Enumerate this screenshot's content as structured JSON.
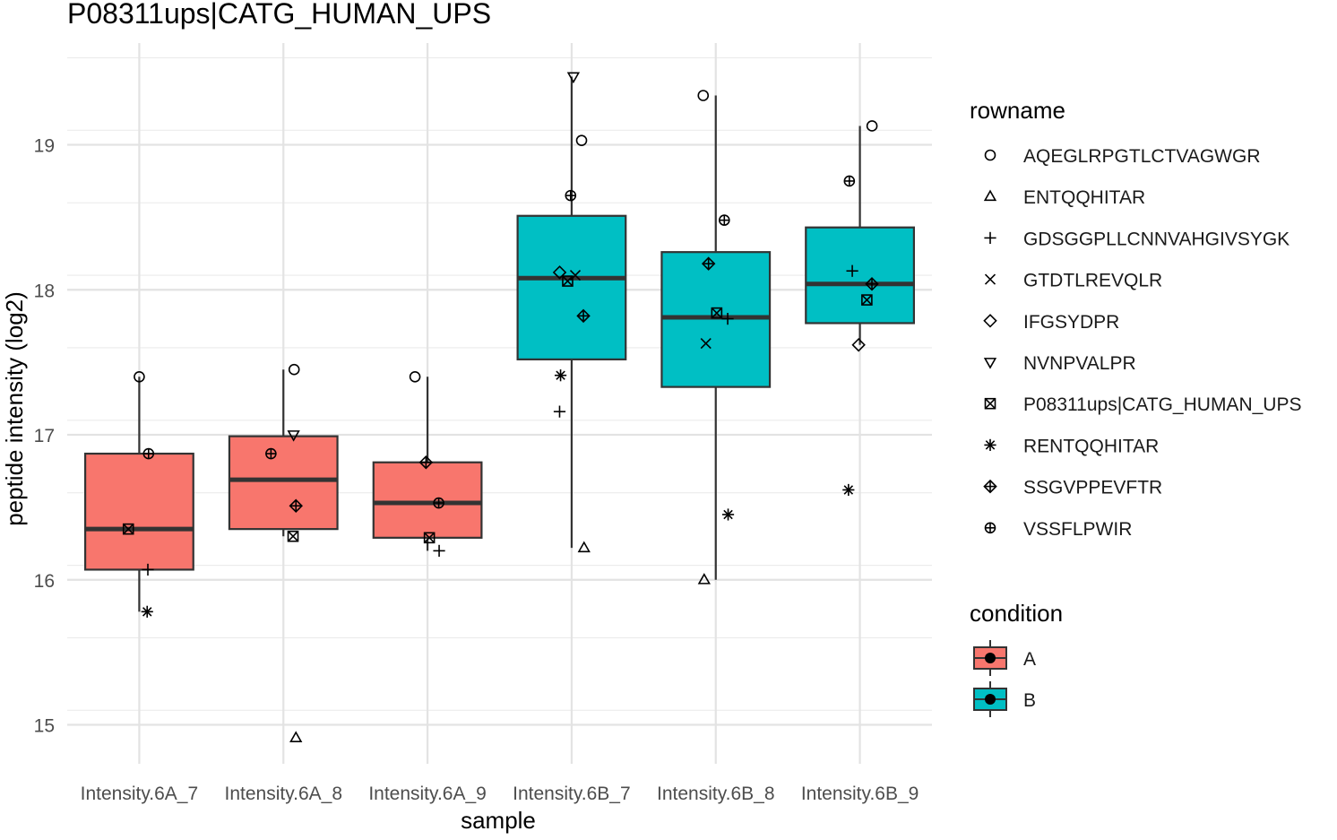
{
  "chart_data": {
    "type": "boxplot",
    "title": "P08311ups|CATG_HUMAN_UPS",
    "xlabel": "sample",
    "ylabel": "peptide intensity (log2)",
    "ylim": [
      14.6,
      19.7
    ],
    "yticks": [
      15,
      16,
      17,
      18,
      19
    ],
    "grid": true,
    "categories": [
      "Intensity.6A_7",
      "Intensity.6A_8",
      "Intensity.6A_9",
      "Intensity.6B_7",
      "Intensity.6B_8",
      "Intensity.6B_9"
    ],
    "conditions": [
      "A",
      "A",
      "A",
      "B",
      "B",
      "B"
    ],
    "boxes": [
      {
        "q1": 16.07,
        "median": 16.35,
        "q3": 16.87,
        "whisker_low": 15.78,
        "whisker_high": 17.4
      },
      {
        "q1": 16.35,
        "median": 16.69,
        "q3": 16.99,
        "whisker_low": 16.3,
        "whisker_high": 17.45
      },
      {
        "q1": 16.29,
        "median": 16.53,
        "q3": 16.81,
        "whisker_low": 16.2,
        "whisker_high": 17.4
      },
      {
        "q1": 17.52,
        "median": 18.08,
        "q3": 18.51,
        "whisker_low": 16.22,
        "whisker_high": 19.47
      },
      {
        "q1": 17.33,
        "median": 17.81,
        "q3": 18.26,
        "whisker_low": 16.0,
        "whisker_high": 19.34
      },
      {
        "q1": 17.77,
        "median": 18.04,
        "q3": 18.43,
        "whisker_low": 17.62,
        "whisker_high": 19.13
      }
    ],
    "points": [
      {
        "sample": 0,
        "peptide": 0,
        "value": 17.4
      },
      {
        "sample": 0,
        "peptide": 9,
        "value": 16.87
      },
      {
        "sample": 0,
        "peptide": 6,
        "value": 16.35
      },
      {
        "sample": 0,
        "peptide": 2,
        "value": 16.07
      },
      {
        "sample": 0,
        "peptide": 7,
        "value": 15.78
      },
      {
        "sample": 1,
        "peptide": 0,
        "value": 17.45
      },
      {
        "sample": 1,
        "peptide": 5,
        "value": 17.0
      },
      {
        "sample": 1,
        "peptide": 9,
        "value": 16.87
      },
      {
        "sample": 1,
        "peptide": 8,
        "value": 16.51
      },
      {
        "sample": 1,
        "peptide": 6,
        "value": 16.3
      },
      {
        "sample": 1,
        "peptide": 1,
        "value": 14.91
      },
      {
        "sample": 2,
        "peptide": 0,
        "value": 17.4
      },
      {
        "sample": 2,
        "peptide": 8,
        "value": 16.81
      },
      {
        "sample": 2,
        "peptide": 9,
        "value": 16.53
      },
      {
        "sample": 2,
        "peptide": 6,
        "value": 16.29
      },
      {
        "sample": 2,
        "peptide": 2,
        "value": 16.2
      },
      {
        "sample": 3,
        "peptide": 5,
        "value": 19.47
      },
      {
        "sample": 3,
        "peptide": 0,
        "value": 19.03
      },
      {
        "sample": 3,
        "peptide": 9,
        "value": 18.65
      },
      {
        "sample": 3,
        "peptide": 3,
        "value": 18.1
      },
      {
        "sample": 3,
        "peptide": 4,
        "value": 18.12
      },
      {
        "sample": 3,
        "peptide": 6,
        "value": 18.06
      },
      {
        "sample": 3,
        "peptide": 8,
        "value": 17.82
      },
      {
        "sample": 3,
        "peptide": 7,
        "value": 17.41
      },
      {
        "sample": 3,
        "peptide": 2,
        "value": 17.16
      },
      {
        "sample": 3,
        "peptide": 1,
        "value": 16.22
      },
      {
        "sample": 4,
        "peptide": 0,
        "value": 19.34
      },
      {
        "sample": 4,
        "peptide": 9,
        "value": 18.48
      },
      {
        "sample": 4,
        "peptide": 8,
        "value": 18.18
      },
      {
        "sample": 4,
        "peptide": 6,
        "value": 17.84
      },
      {
        "sample": 4,
        "peptide": 2,
        "value": 17.8
      },
      {
        "sample": 4,
        "peptide": 3,
        "value": 17.63
      },
      {
        "sample": 4,
        "peptide": 7,
        "value": 16.45
      },
      {
        "sample": 4,
        "peptide": 1,
        "value": 16.0
      },
      {
        "sample": 5,
        "peptide": 0,
        "value": 19.13
      },
      {
        "sample": 5,
        "peptide": 9,
        "value": 18.75
      },
      {
        "sample": 5,
        "peptide": 2,
        "value": 18.13
      },
      {
        "sample": 5,
        "peptide": 8,
        "value": 18.04
      },
      {
        "sample": 5,
        "peptide": 6,
        "value": 17.93
      },
      {
        "sample": 5,
        "peptide": 4,
        "value": 17.62
      },
      {
        "sample": 5,
        "peptide": 7,
        "value": 16.62
      }
    ],
    "legend_shape": {
      "title": "rowname",
      "entries": [
        {
          "label": "AQEGLRPGTLCTVAGWGR",
          "shape": "circle"
        },
        {
          "label": "ENTQQHITAR",
          "shape": "triangle-up"
        },
        {
          "label": "GDSGGPLLCNNVAHGIVSYGK",
          "shape": "plus"
        },
        {
          "label": "GTDTLREVQLR",
          "shape": "cross"
        },
        {
          "label": "IFGSYDPR",
          "shape": "diamond"
        },
        {
          "label": "NVNPVALPR",
          "shape": "triangle-down"
        },
        {
          "label": "P08311ups|CATG_HUMAN_UPS",
          "shape": "square-cross"
        },
        {
          "label": "RENTQQHITAR",
          "shape": "asterisk"
        },
        {
          "label": "SSGVPPEVFTR",
          "shape": "diamond-plus"
        },
        {
          "label": "VSSFLPWIR",
          "shape": "circle-plus"
        }
      ]
    },
    "legend_fill": {
      "title": "condition",
      "entries": [
        {
          "label": "A",
          "color": "#F8766D"
        },
        {
          "label": "B",
          "color": "#00BFC4"
        }
      ]
    },
    "legend_placement": "right"
  }
}
